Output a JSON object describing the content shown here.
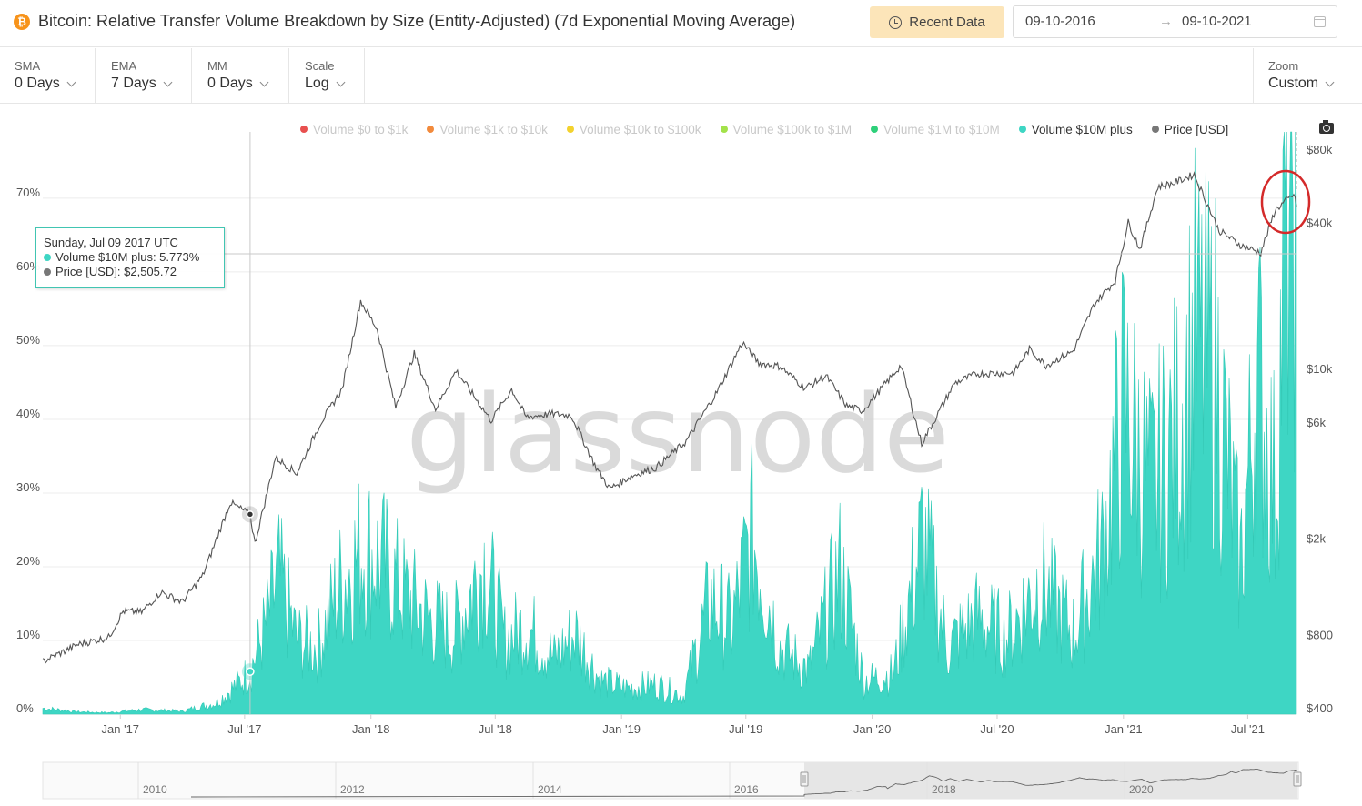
{
  "header": {
    "icon_glyph": "₿",
    "title": "Bitcoin: Relative Transfer Volume Breakdown by Size (Entity-Adjusted) (7d Exponential Moving Average)",
    "recent_label": "Recent Data",
    "date_start": "09-10-2016",
    "date_arrow": "→",
    "date_end": "09-10-2021"
  },
  "controls": {
    "sma": {
      "label": "SMA",
      "value": "0 Days"
    },
    "ema": {
      "label": "EMA",
      "value": "7 Days"
    },
    "mm": {
      "label": "MM",
      "value": "0 Days"
    },
    "scale": {
      "label": "Scale",
      "value": "Log"
    },
    "zoom": {
      "label": "Zoom",
      "value": "Custom"
    }
  },
  "legend": [
    {
      "label": "Volume $0 to $1k",
      "color": "#e8504f",
      "active": false
    },
    {
      "label": "Volume $1k to $10k",
      "color": "#f28a3c",
      "active": false
    },
    {
      "label": "Volume $10k to $100k",
      "color": "#f3d22e",
      "active": false
    },
    {
      "label": "Volume $100k to $1M",
      "color": "#a3e24a",
      "active": false
    },
    {
      "label": "Volume $1M to $10M",
      "color": "#2ed07a",
      "active": false
    },
    {
      "label": "Volume $10M plus",
      "color": "#3ed6c4",
      "active": true
    },
    {
      "label": "Price [USD]",
      "color": "#777777",
      "active": true
    }
  ],
  "tooltip": {
    "date": "Sunday, Jul 09 2017 UTC",
    "series1_text": "Volume $10M plus: 5.773%",
    "series1_color": "#3ed6c4",
    "series2_text": "Price [USD]: $2,505.72",
    "series2_color": "#777777"
  },
  "watermark": "glassnode",
  "chart_data": {
    "type": "area",
    "title": "Bitcoin: Relative Transfer Volume Breakdown by Size (Entity-Adjusted) (7d Exponential Moving Average)",
    "x_range": [
      "2016-09-10",
      "2021-09-10"
    ],
    "x_ticks": [
      "Jan '17",
      "Jul '17",
      "Jan '18",
      "Jul '18",
      "Jan '19",
      "Jul '19",
      "Jan '20",
      "Jul '20",
      "Jan '21",
      "Jul '21"
    ],
    "x_tick_dates": [
      "2017-01-01",
      "2017-07-01",
      "2018-01-01",
      "2018-07-01",
      "2019-01-01",
      "2019-07-01",
      "2020-01-01",
      "2020-07-01",
      "2021-01-01",
      "2021-07-01"
    ],
    "y_left": {
      "ticks": [
        0,
        10,
        20,
        30,
        40,
        50,
        60,
        70
      ],
      "tick_labels": [
        "0%",
        "10%",
        "20%",
        "30%",
        "40%",
        "50%",
        "60%",
        "70%"
      ],
      "range": [
        0,
        79
      ]
    },
    "y_right": {
      "scale": "log",
      "ticks": [
        400,
        800,
        2000,
        6000,
        10000,
        40000,
        80000
      ],
      "tick_labels": [
        "$400",
        "$800",
        "$2k",
        "$6k",
        "$10k",
        "$40k",
        "$80k"
      ],
      "range": [
        400,
        80000
      ]
    },
    "grid": true,
    "legend_position": "top",
    "series": [
      {
        "name": "Volume $10M plus",
        "unit": "%",
        "color": "#3ed6c4",
        "points": [
          [
            "2016-09-10",
            0.8
          ],
          [
            "2016-11-01",
            0.3
          ],
          [
            "2016-12-15",
            0.2
          ],
          [
            "2017-02-01",
            0.6
          ],
          [
            "2017-04-01",
            0.4
          ],
          [
            "2017-05-20",
            1.5
          ],
          [
            "2017-06-20",
            4.0
          ],
          [
            "2017-07-09",
            5.8
          ],
          [
            "2017-08-01",
            12.0
          ],
          [
            "2017-08-20",
            18.5
          ],
          [
            "2017-09-15",
            10.0
          ],
          [
            "2017-10-15",
            9.0
          ],
          [
            "2017-11-15",
            17.0
          ],
          [
            "2017-12-20",
            22.5
          ],
          [
            "2018-01-20",
            20.0
          ],
          [
            "2018-02-20",
            16.0
          ],
          [
            "2018-03-25",
            13.0
          ],
          [
            "2018-05-01",
            11.0
          ],
          [
            "2018-06-15",
            20.5
          ],
          [
            "2018-07-15",
            10.0
          ],
          [
            "2018-08-15",
            12.0
          ],
          [
            "2018-09-25",
            7.5
          ],
          [
            "2018-10-25",
            11.0
          ],
          [
            "2018-12-01",
            4.5
          ],
          [
            "2019-01-10",
            3.5
          ],
          [
            "2019-02-20",
            4.0
          ],
          [
            "2019-04-01",
            2.5
          ],
          [
            "2019-05-10",
            15.5
          ],
          [
            "2019-06-10",
            12.0
          ],
          [
            "2019-07-10",
            24.5
          ],
          [
            "2019-08-20",
            9.0
          ],
          [
            "2019-10-01",
            6.0
          ],
          [
            "2019-11-15",
            19.5
          ],
          [
            "2019-12-20",
            4.5
          ],
          [
            "2020-02-01",
            5.5
          ],
          [
            "2020-03-15",
            24.0
          ],
          [
            "2020-04-20",
            9.0
          ],
          [
            "2020-06-01",
            13.0
          ],
          [
            "2020-07-15",
            10.5
          ],
          [
            "2020-09-01",
            18.0
          ],
          [
            "2020-10-20",
            11.0
          ],
          [
            "2020-12-01",
            22.0
          ],
          [
            "2021-01-01",
            42.0
          ],
          [
            "2021-02-10",
            30.0
          ],
          [
            "2021-03-20",
            38.0
          ],
          [
            "2021-04-15",
            50.0
          ],
          [
            "2021-05-15",
            47.0
          ],
          [
            "2021-06-20",
            20.0
          ],
          [
            "2021-07-15",
            46.0
          ],
          [
            "2021-08-10",
            30.0
          ],
          [
            "2021-08-25",
            66.0
          ],
          [
            "2021-09-05",
            72.0
          ],
          [
            "2021-09-10",
            69.0
          ]
        ]
      },
      {
        "name": "Price [USD]",
        "unit": "USD",
        "axis": "right",
        "color": "#555555",
        "points": [
          [
            "2016-09-10",
            620
          ],
          [
            "2016-11-01",
            730
          ],
          [
            "2016-12-15",
            780
          ],
          [
            "2017-01-05",
            1000
          ],
          [
            "2017-02-01",
            990
          ],
          [
            "2017-03-01",
            1200
          ],
          [
            "2017-04-01",
            1090
          ],
          [
            "2017-05-01",
            1400
          ],
          [
            "2017-06-10",
            2800
          ],
          [
            "2017-07-09",
            2506
          ],
          [
            "2017-07-16",
            1900
          ],
          [
            "2017-08-15",
            4300
          ],
          [
            "2017-09-15",
            3700
          ],
          [
            "2017-10-20",
            6000
          ],
          [
            "2017-11-20",
            8200
          ],
          [
            "2017-12-17",
            19000
          ],
          [
            "2018-01-10",
            14500
          ],
          [
            "2018-02-06",
            6900
          ],
          [
            "2018-03-05",
            11500
          ],
          [
            "2018-04-05",
            6800
          ],
          [
            "2018-05-05",
            9800
          ],
          [
            "2018-06-25",
            6100
          ],
          [
            "2018-07-25",
            8200
          ],
          [
            "2018-08-15",
            6300
          ],
          [
            "2018-09-20",
            6500
          ],
          [
            "2018-10-20",
            6400
          ],
          [
            "2018-11-25",
            3900
          ],
          [
            "2018-12-15",
            3200
          ],
          [
            "2019-01-15",
            3600
          ],
          [
            "2019-02-20",
            3900
          ],
          [
            "2019-04-05",
            5000
          ],
          [
            "2019-05-20",
            8000
          ],
          [
            "2019-06-26",
            12800
          ],
          [
            "2019-07-20",
            10500
          ],
          [
            "2019-08-20",
            10200
          ],
          [
            "2019-09-25",
            8300
          ],
          [
            "2019-10-26",
            9300
          ],
          [
            "2019-11-25",
            7000
          ],
          [
            "2019-12-18",
            6700
          ],
          [
            "2020-02-12",
            10300
          ],
          [
            "2020-03-13",
            4900
          ],
          [
            "2020-04-30",
            8700
          ],
          [
            "2020-06-01",
            9500
          ],
          [
            "2020-07-25",
            9600
          ],
          [
            "2020-08-17",
            12000
          ],
          [
            "2020-09-10",
            10300
          ],
          [
            "2020-10-20",
            11800
          ],
          [
            "2020-11-20",
            18500
          ],
          [
            "2020-12-20",
            23000
          ],
          [
            "2021-01-08",
            40000
          ],
          [
            "2021-01-25",
            31000
          ],
          [
            "2021-02-20",
            56000
          ],
          [
            "2021-03-15",
            58000
          ],
          [
            "2021-04-14",
            63000
          ],
          [
            "2021-05-20",
            37000
          ],
          [
            "2021-06-22",
            32000
          ],
          [
            "2021-07-20",
            30000
          ],
          [
            "2021-08-10",
            45000
          ],
          [
            "2021-09-06",
            52000
          ],
          [
            "2021-09-10",
            46500
          ]
        ]
      }
    ]
  },
  "navigator": {
    "ticks": [
      "2010",
      "2012",
      "2014",
      "2016",
      "2018",
      "2020"
    ]
  }
}
